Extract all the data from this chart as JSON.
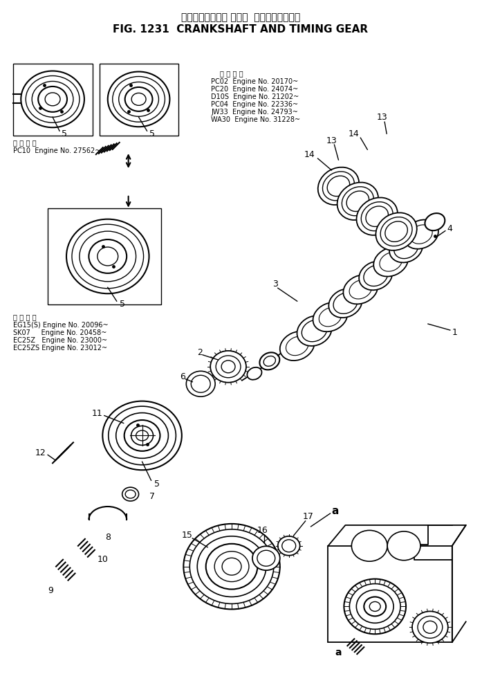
{
  "title_jp": "クランクシャフト および  タイミングギヤー",
  "title_en": "FIG. 1231  CRANKSHAFT AND TIMING GEAR",
  "bg_color": "#ffffff",
  "applicability_top": [
    "適 用 号 機",
    "PC02  Engine No. 20170~",
    "PC20  Engine No. 24074~",
    "D10S  Engine No. 21202~",
    "PC04  Engine No. 22336~",
    "JW33  Engine No. 24793~",
    "WA30  Engine No. 31228~"
  ],
  "applicability_mid": [
    "適 用 号 機",
    "PC10  Engine No. 27562~"
  ],
  "applicability_bot": [
    "適 用 号 機",
    "EG15(S) Engine No. 20096~",
    "SK07     Engine No. 20458~",
    "EC25Z   Engine No. 23000~",
    "EC25ZS Engine No. 23012~"
  ]
}
